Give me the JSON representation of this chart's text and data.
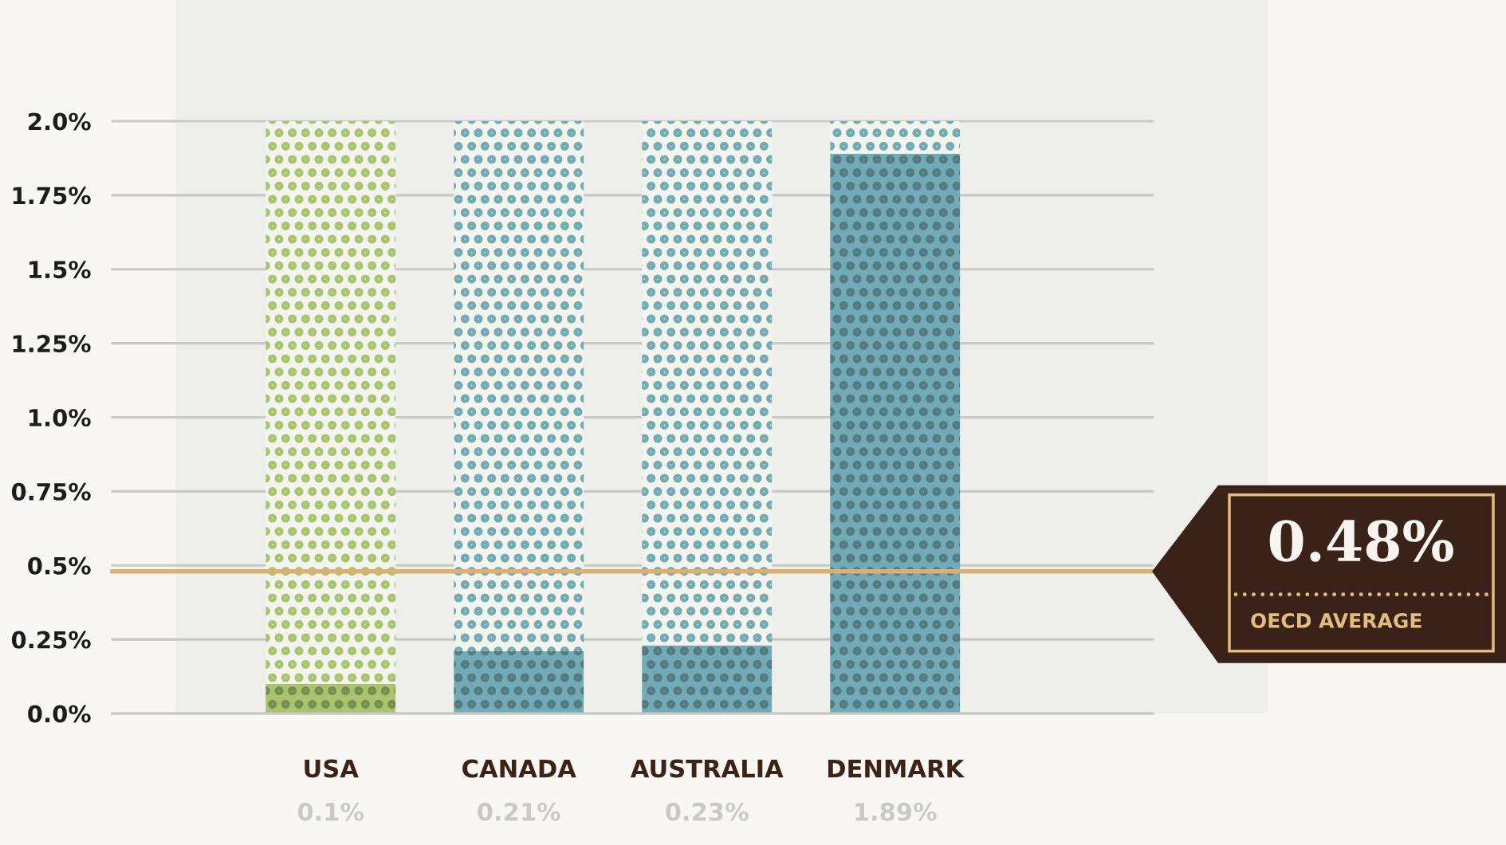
{
  "chart_data": {
    "type": "bar",
    "stacked": true,
    "categories": [
      "USA",
      "CANADA",
      "AUSTRALIA",
      "DENMARK"
    ],
    "series": [
      {
        "colors": [
          "#a8c46e",
          "#72abb5",
          "#72abb5",
          "#72abb5"
        ],
        "values": [
          0.1,
          0.21,
          0.23,
          1.89
        ],
        "value_labels": [
          "0.1%",
          "0.21%",
          "0.23%",
          "1.89%"
        ]
      },
      {
        "colors": [
          "#f4f4ee",
          "#f4f4ee",
          "#f4f4ee",
          "#f4f4ee"
        ],
        "values": [
          1.9,
          1.79,
          1.77,
          0.11
        ]
      }
    ],
    "ylim": [
      0,
      2.0
    ],
    "yticks": [
      {
        "value": 0,
        "label": "0.0%"
      },
      {
        "value": 0.25,
        "label": "0.25%"
      },
      {
        "value": 0.5,
        "label": "0.5%"
      },
      {
        "value": 0.75,
        "label": "0.75%"
      },
      {
        "value": 1.0,
        "label": "1.0%"
      },
      {
        "value": 1.25,
        "label": "1.25%"
      },
      {
        "value": 1.5,
        "label": "1.5%"
      },
      {
        "value": 1.75,
        "label": "1.75%"
      },
      {
        "value": 2.0,
        "label": "2.0%"
      }
    ],
    "grid": "y",
    "ref_lines": [
      {
        "axis": "y",
        "value": 0.48,
        "label": "0.48%",
        "color": "#dcb072"
      }
    ],
    "annotations": [
      "OECD AVERAGE"
    ]
  }
}
